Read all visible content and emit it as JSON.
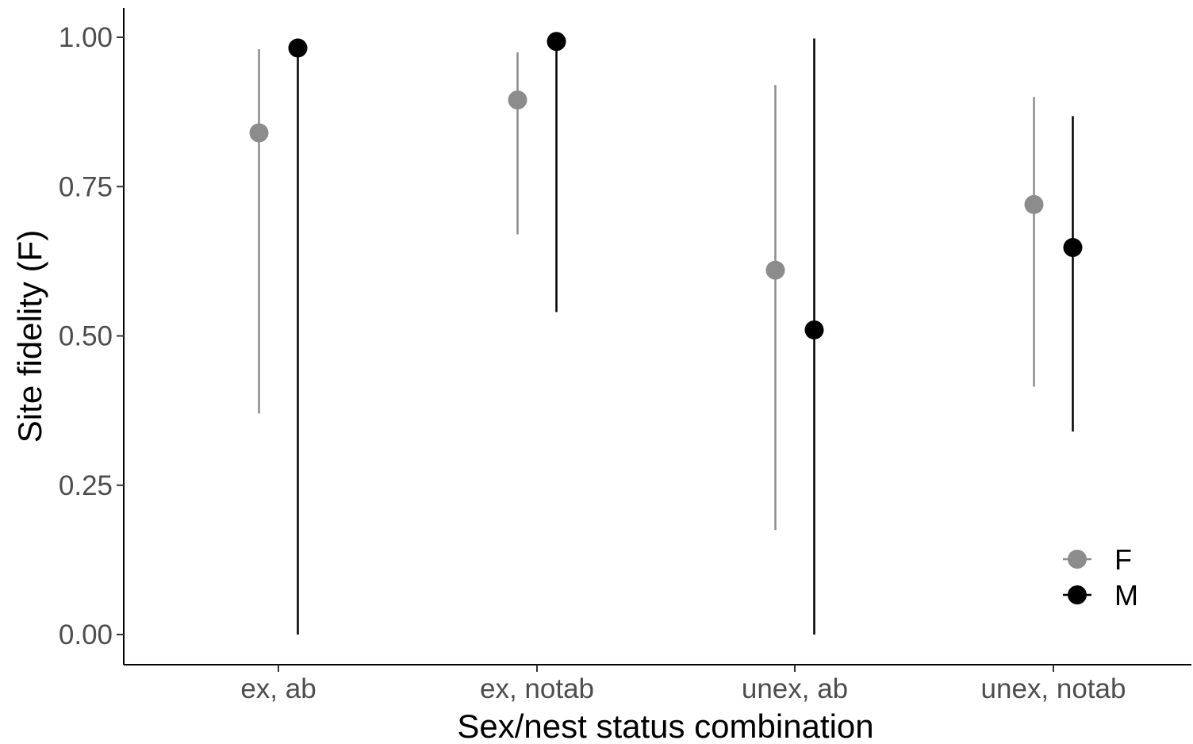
{
  "chart_data": {
    "type": "scatter",
    "title": "",
    "xlabel": "Sex/nest status combination",
    "ylabel": "Site fidelity (F)",
    "categories": [
      "ex, ab",
      "ex, notab",
      "unex, ab",
      "unex, notab"
    ],
    "ylim": [
      -0.05,
      1.05
    ],
    "yticks": [
      "0.00",
      "0.25",
      "0.50",
      "0.75",
      "1.00"
    ],
    "grid": false,
    "legend_position": "bottom-right",
    "series": [
      {
        "name": "F",
        "color": "#8c8c8c",
        "values": [
          0.84,
          0.895,
          0.61,
          0.72
        ],
        "lower": [
          0.37,
          0.67,
          0.175,
          0.415
        ],
        "upper": [
          0.98,
          0.975,
          0.92,
          0.9
        ]
      },
      {
        "name": "M",
        "color": "#000000",
        "values": [
          0.982,
          0.993,
          0.51,
          0.648
        ],
        "lower": [
          0.0,
          0.54,
          0.0,
          0.34
        ],
        "upper": [
          0.985,
          0.995,
          0.998,
          0.868
        ]
      }
    ]
  }
}
